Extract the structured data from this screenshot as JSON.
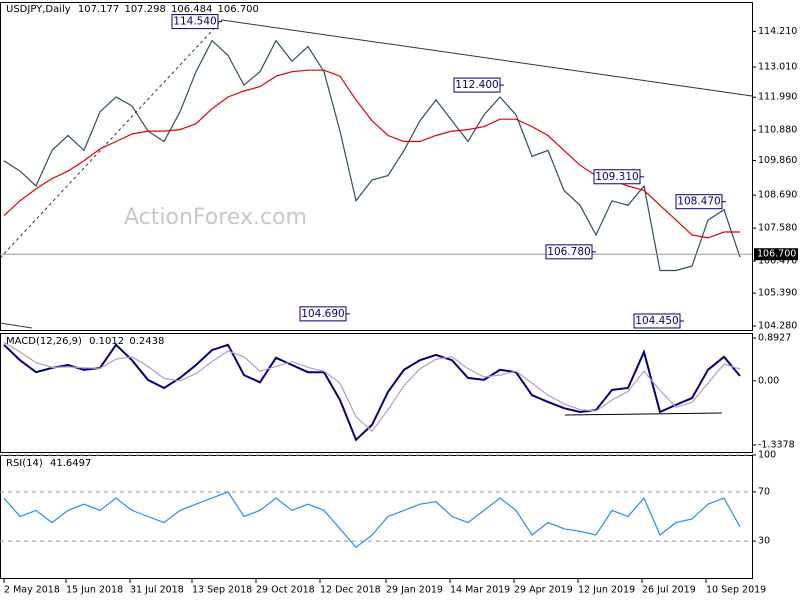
{
  "header": {
    "symbol": "USDJPY,Daily",
    "open": 107.177,
    "high": 107.298,
    "low": 106.484,
    "close": {
      "value": 106.7,
      "label": "106.700"
    }
  },
  "watermark": "ActionForex.com",
  "chart_data": [
    {
      "type": "line",
      "title": "USDJPY,Daily",
      "x": [
        0,
        8,
        16,
        24,
        32,
        40,
        48,
        56,
        64,
        72,
        80,
        88,
        96,
        104,
        112,
        120,
        128,
        136,
        144,
        152,
        160,
        168,
        176,
        184,
        192,
        200,
        208,
        216,
        224,
        232,
        240,
        248,
        256,
        264,
        272,
        280,
        288,
        296,
        304,
        312,
        320,
        328,
        336,
        344,
        352,
        360,
        368
      ],
      "xlim": [
        -2,
        374
      ],
      "xticks": [
        {
          "value": 0,
          "label": "2 May 2018"
        },
        {
          "value": 31,
          "label": "15 Jun 2018"
        },
        {
          "value": 63,
          "label": "31 Jul 2018"
        },
        {
          "value": 94,
          "label": "13 Sep 2018"
        },
        {
          "value": 126,
          "label": "29 Oct 2018"
        },
        {
          "value": 158,
          "label": "12 Dec 2018"
        },
        {
          "value": 191,
          "label": "29 Jan 2019"
        },
        {
          "value": 223,
          "label": "14 Mar 2019"
        },
        {
          "value": 255,
          "label": "29 Apr 2019"
        },
        {
          "value": 287,
          "label": "12 Jun 2019"
        },
        {
          "value": 319,
          "label": "26 Jul 2019"
        },
        {
          "value": 351,
          "label": "10 Sep 2019"
        }
      ],
      "ylim": [
        104.146,
        115.2
      ],
      "yticks": [
        {
          "value": 114.21,
          "label": "114.210"
        },
        {
          "value": 113.01,
          "label": "113.010"
        },
        {
          "value": 111.99,
          "label": "111.990"
        },
        {
          "value": 110.88,
          "label": "110.880"
        },
        {
          "value": 109.86,
          "label": "109.860"
        },
        {
          "value": 108.69,
          "label": "108.690"
        },
        {
          "value": 107.58,
          "label": "107.580"
        },
        {
          "value": 106.47,
          "label": "106.470"
        },
        {
          "value": 105.39,
          "label": "105.390"
        },
        {
          "value": 104.28,
          "label": "104.280"
        }
      ],
      "grid": false,
      "series": [
        {
          "name": "Close",
          "color": "#2f4f5f",
          "values": [
            109.85,
            109.5,
            109.0,
            110.2,
            110.7,
            110.2,
            111.5,
            112.0,
            111.7,
            110.85,
            110.5,
            111.5,
            112.85,
            113.9,
            113.4,
            112.4,
            112.85,
            113.9,
            113.2,
            113.7,
            112.85,
            110.85,
            108.5,
            109.2,
            109.35,
            110.2,
            111.2,
            111.9,
            111.2,
            110.5,
            111.4,
            112.0,
            111.4,
            110.0,
            110.2,
            108.85,
            108.35,
            107.35,
            108.5,
            108.35,
            109.0,
            106.15,
            106.15,
            106.3,
            107.85,
            108.2,
            106.6
          ]
        },
        {
          "name": "MA",
          "color": "#e00000",
          "values": [
            108.0,
            108.5,
            108.9,
            109.25,
            109.5,
            109.85,
            110.25,
            110.5,
            110.75,
            110.85,
            110.85,
            110.9,
            111.1,
            111.6,
            112.0,
            112.2,
            112.35,
            112.7,
            112.85,
            112.9,
            112.9,
            112.7,
            111.9,
            111.2,
            110.7,
            110.5,
            110.5,
            110.7,
            110.85,
            110.9,
            111.0,
            111.25,
            111.25,
            111.0,
            110.7,
            110.2,
            109.7,
            109.35,
            109.2,
            109.0,
            108.85,
            108.35,
            107.85,
            107.35,
            107.25,
            107.45,
            107.45
          ]
        }
      ],
      "annotations": [
        {
          "x": 109,
          "value": 114.54,
          "label": "114.540"
        },
        {
          "x": 173,
          "value": 104.69,
          "label": "104.690"
        },
        {
          "x": 250,
          "value": 112.4,
          "label": "112.400"
        },
        {
          "x": 296,
          "value": 106.78,
          "label": "106.780"
        },
        {
          "x": 320,
          "value": 109.31,
          "label": "109.310"
        },
        {
          "x": 340,
          "value": 104.45,
          "label": "104.450"
        },
        {
          "x": 361,
          "value": 108.47,
          "label": "108.470"
        }
      ]
    },
    {
      "type": "line",
      "title": "MACD(12,26,9)",
      "current": [
        0.1012,
        0.2438
      ],
      "ylim": [
        -1.484,
        0.997
      ],
      "yticks": [
        0.8927,
        {
          "value": 0,
          "label": "0.00"
        },
        -1.3378
      ],
      "grid": false,
      "series": [
        {
          "name": "MACD",
          "color": "#00007f",
          "values": [
            0.75,
            0.43,
            0.18,
            0.27,
            0.33,
            0.23,
            0.27,
            0.75,
            0.43,
            0.02,
            -0.15,
            0.06,
            0.33,
            0.64,
            0.75,
            0.12,
            -0.03,
            0.48,
            0.33,
            0.18,
            0.18,
            -0.4,
            -1.23,
            -0.92,
            -0.23,
            0.23,
            0.43,
            0.54,
            0.43,
            0.06,
            0.02,
            0.23,
            0.18,
            -0.3,
            -0.44,
            -0.57,
            -0.65,
            -0.61,
            -0.19,
            -0.15,
            0.6,
            -0.65,
            -0.5,
            -0.36,
            0.23,
            0.5,
            0.1012
          ]
        },
        {
          "name": "Signal",
          "color": "#b39ccc",
          "values": [
            0.8,
            0.6,
            0.38,
            0.28,
            0.29,
            0.27,
            0.26,
            0.45,
            0.5,
            0.3,
            0.05,
            0.0,
            0.15,
            0.4,
            0.62,
            0.5,
            0.2,
            0.3,
            0.4,
            0.28,
            0.2,
            -0.05,
            -0.75,
            -1.05,
            -0.6,
            -0.1,
            0.25,
            0.45,
            0.5,
            0.25,
            0.08,
            0.12,
            0.2,
            -0.05,
            -0.3,
            -0.48,
            -0.6,
            -0.63,
            -0.4,
            -0.22,
            0.2,
            -0.2,
            -0.55,
            -0.45,
            -0.05,
            0.35,
            0.2438
          ]
        }
      ]
    },
    {
      "type": "line",
      "title": "RSI(14)",
      "current": [
        41.6497
      ],
      "ylim": [
        0,
        100
      ],
      "yticks": [
        100,
        70,
        30
      ],
      "grid": true,
      "series": [
        {
          "name": "RSI",
          "color": "#1e90ff",
          "values": [
            65,
            50,
            55,
            45,
            55,
            60,
            55,
            65,
            55,
            50,
            45,
            55,
            60,
            65,
            70,
            50,
            55,
            65,
            55,
            60,
            55,
            40,
            25,
            35,
            50,
            55,
            60,
            62,
            50,
            45,
            55,
            65,
            55,
            35,
            45,
            40,
            38,
            35,
            55,
            50,
            65,
            35,
            45,
            48,
            60,
            65,
            41.6497
          ]
        }
      ]
    }
  ]
}
